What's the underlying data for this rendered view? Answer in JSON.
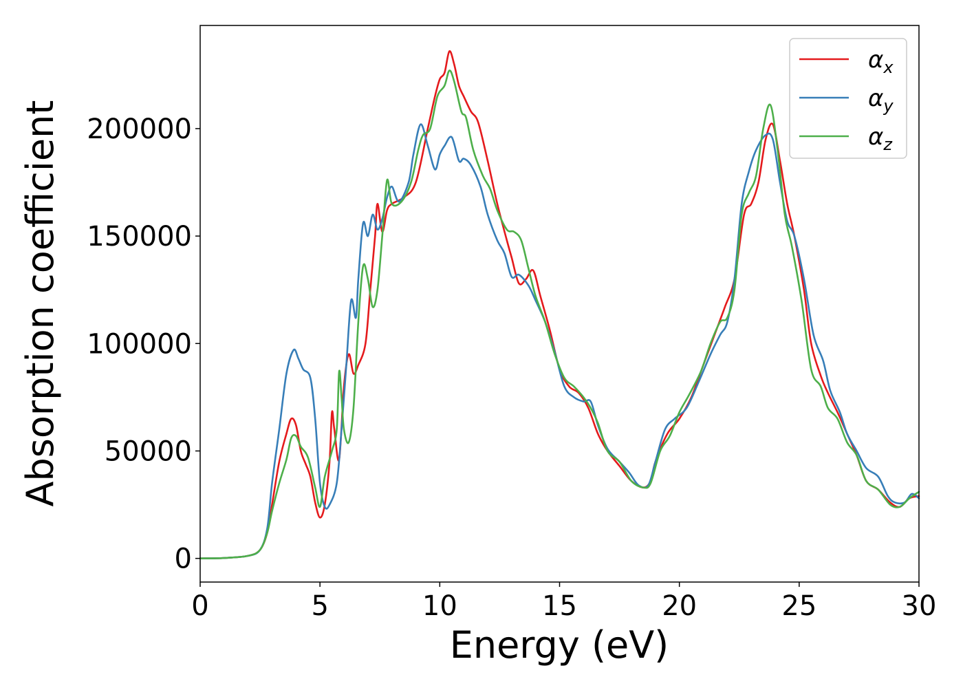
{
  "chart_data": {
    "type": "line",
    "title": "",
    "xlabel": "Energy (eV)",
    "ylabel": "Absorption coefficient",
    "xlim": [
      0,
      30
    ],
    "ylim": [
      -11000,
      248000
    ],
    "x_ticks": [
      0,
      5,
      10,
      15,
      20,
      25,
      30
    ],
    "y_ticks": [
      0,
      50000,
      100000,
      150000,
      200000
    ],
    "x_tick_labels": [
      "0",
      "5",
      "10",
      "15",
      "20",
      "25",
      "30"
    ],
    "y_tick_labels": [
      "0",
      "50000",
      "100000",
      "150000",
      "200000"
    ],
    "grid": false,
    "legend_position": "top-right",
    "series": [
      {
        "name": "α",
        "subscript": "x",
        "color": "#e41a1c",
        "points": [
          [
            0,
            0
          ],
          [
            1,
            200
          ],
          [
            2,
            1200
          ],
          [
            2.5,
            4000
          ],
          [
            2.8,
            12000
          ],
          [
            3.0,
            25000
          ],
          [
            3.3,
            45000
          ],
          [
            3.6,
            58000
          ],
          [
            3.8,
            65000
          ],
          [
            4.0,
            62000
          ],
          [
            4.2,
            50000
          ],
          [
            4.4,
            44000
          ],
          [
            4.6,
            38000
          ],
          [
            4.8,
            26000
          ],
          [
            5.0,
            19000
          ],
          [
            5.2,
            25000
          ],
          [
            5.4,
            45000
          ],
          [
            5.5,
            68000
          ],
          [
            5.6,
            60000
          ],
          [
            5.8,
            46000
          ],
          [
            6.0,
            80000
          ],
          [
            6.2,
            95000
          ],
          [
            6.4,
            86000
          ],
          [
            6.6,
            90000
          ],
          [
            6.9,
            100000
          ],
          [
            7.1,
            125000
          ],
          [
            7.3,
            150000
          ],
          [
            7.4,
            165000
          ],
          [
            7.6,
            152000
          ],
          [
            7.8,
            162000
          ],
          [
            8.0,
            165000
          ],
          [
            8.5,
            168000
          ],
          [
            9.0,
            175000
          ],
          [
            9.5,
            200000
          ],
          [
            9.8,
            215000
          ],
          [
            10.0,
            223000
          ],
          [
            10.2,
            226000
          ],
          [
            10.4,
            236000
          ],
          [
            10.6,
            230000
          ],
          [
            10.8,
            220000
          ],
          [
            11.0,
            215000
          ],
          [
            11.3,
            208000
          ],
          [
            11.6,
            203000
          ],
          [
            12.0,
            185000
          ],
          [
            12.4,
            165000
          ],
          [
            12.8,
            148000
          ],
          [
            13.0,
            140000
          ],
          [
            13.3,
            128000
          ],
          [
            13.6,
            130000
          ],
          [
            13.9,
            134000
          ],
          [
            14.2,
            122000
          ],
          [
            14.6,
            106000
          ],
          [
            15.0,
            88000
          ],
          [
            15.4,
            80000
          ],
          [
            15.8,
            77000
          ],
          [
            16.2,
            70000
          ],
          [
            16.6,
            58000
          ],
          [
            17.0,
            50000
          ],
          [
            17.5,
            43000
          ],
          [
            18.0,
            36000
          ],
          [
            18.5,
            33000
          ],
          [
            18.8,
            36000
          ],
          [
            19.0,
            45000
          ],
          [
            19.5,
            58000
          ],
          [
            20.0,
            65000
          ],
          [
            20.5,
            75000
          ],
          [
            21.0,
            90000
          ],
          [
            21.5,
            105000
          ],
          [
            21.9,
            117000
          ],
          [
            22.3,
            130000
          ],
          [
            22.7,
            160000
          ],
          [
            23.0,
            165000
          ],
          [
            23.3,
            175000
          ],
          [
            23.6,
            195000
          ],
          [
            23.9,
            202000
          ],
          [
            24.2,
            185000
          ],
          [
            24.5,
            165000
          ],
          [
            24.8,
            150000
          ],
          [
            25.2,
            125000
          ],
          [
            25.5,
            100000
          ],
          [
            25.9,
            85000
          ],
          [
            26.2,
            77000
          ],
          [
            26.6,
            68000
          ],
          [
            27.0,
            58000
          ],
          [
            27.4,
            48000
          ],
          [
            27.8,
            36000
          ],
          [
            28.3,
            32000
          ],
          [
            28.8,
            26000
          ],
          [
            29.2,
            24000
          ],
          [
            29.6,
            28000
          ],
          [
            30.0,
            29000
          ]
        ]
      },
      {
        "name": "α",
        "subscript": "y",
        "color": "#377eb8",
        "points": [
          [
            0,
            0
          ],
          [
            1,
            200
          ],
          [
            2,
            1200
          ],
          [
            2.5,
            4000
          ],
          [
            2.8,
            14000
          ],
          [
            3.0,
            35000
          ],
          [
            3.3,
            60000
          ],
          [
            3.6,
            86000
          ],
          [
            3.9,
            97000
          ],
          [
            4.1,
            93000
          ],
          [
            4.3,
            88000
          ],
          [
            4.6,
            84000
          ],
          [
            4.8,
            65000
          ],
          [
            5.0,
            35000
          ],
          [
            5.2,
            24000
          ],
          [
            5.4,
            25000
          ],
          [
            5.7,
            35000
          ],
          [
            5.9,
            60000
          ],
          [
            6.1,
            90000
          ],
          [
            6.3,
            120000
          ],
          [
            6.5,
            112000
          ],
          [
            6.6,
            130000
          ],
          [
            6.8,
            156000
          ],
          [
            7.0,
            150000
          ],
          [
            7.2,
            160000
          ],
          [
            7.4,
            153000
          ],
          [
            7.6,
            158000
          ],
          [
            7.8,
            168000
          ],
          [
            8.0,
            173000
          ],
          [
            8.3,
            166000
          ],
          [
            8.7,
            175000
          ],
          [
            8.9,
            188000
          ],
          [
            9.2,
            202000
          ],
          [
            9.5,
            192000
          ],
          [
            9.8,
            181000
          ],
          [
            10.0,
            188000
          ],
          [
            10.2,
            192000
          ],
          [
            10.5,
            196000
          ],
          [
            10.8,
            185000
          ],
          [
            11.0,
            186000
          ],
          [
            11.3,
            183000
          ],
          [
            11.7,
            173000
          ],
          [
            12.0,
            160000
          ],
          [
            12.4,
            148000
          ],
          [
            12.7,
            142000
          ],
          [
            13.0,
            131000
          ],
          [
            13.3,
            132000
          ],
          [
            13.7,
            127000
          ],
          [
            14.0,
            120000
          ],
          [
            14.4,
            110000
          ],
          [
            14.8,
            96000
          ],
          [
            15.2,
            80000
          ],
          [
            15.6,
            75000
          ],
          [
            16.0,
            73000
          ],
          [
            16.3,
            73000
          ],
          [
            16.6,
            62000
          ],
          [
            17.0,
            51000
          ],
          [
            17.5,
            45000
          ],
          [
            17.9,
            40000
          ],
          [
            18.3,
            34000
          ],
          [
            18.7,
            34000
          ],
          [
            19.0,
            45000
          ],
          [
            19.4,
            60000
          ],
          [
            19.8,
            65000
          ],
          [
            20.3,
            70000
          ],
          [
            20.8,
            82000
          ],
          [
            21.3,
            95000
          ],
          [
            21.7,
            104000
          ],
          [
            22.0,
            110000
          ],
          [
            22.3,
            130000
          ],
          [
            22.6,
            165000
          ],
          [
            22.9,
            180000
          ],
          [
            23.2,
            190000
          ],
          [
            23.6,
            197000
          ],
          [
            23.9,
            195000
          ],
          [
            24.2,
            175000
          ],
          [
            24.5,
            157000
          ],
          [
            24.8,
            150000
          ],
          [
            25.2,
            130000
          ],
          [
            25.6,
            104000
          ],
          [
            26.0,
            92000
          ],
          [
            26.3,
            78000
          ],
          [
            26.7,
            68000
          ],
          [
            27.0,
            58000
          ],
          [
            27.4,
            50000
          ],
          [
            27.8,
            42000
          ],
          [
            28.3,
            38000
          ],
          [
            28.7,
            29000
          ],
          [
            29.0,
            26000
          ],
          [
            29.4,
            26000
          ],
          [
            29.7,
            30000
          ],
          [
            30.0,
            28000
          ]
        ]
      },
      {
        "name": "α",
        "subscript": "z",
        "color": "#4daf4a",
        "points": [
          [
            0,
            0
          ],
          [
            1,
            200
          ],
          [
            2,
            1200
          ],
          [
            2.5,
            4000
          ],
          [
            2.8,
            12000
          ],
          [
            3.0,
            22000
          ],
          [
            3.3,
            35000
          ],
          [
            3.6,
            46000
          ],
          [
            3.8,
            56000
          ],
          [
            4.0,
            57000
          ],
          [
            4.2,
            52000
          ],
          [
            4.5,
            47000
          ],
          [
            4.8,
            33000
          ],
          [
            5.0,
            24000
          ],
          [
            5.2,
            38000
          ],
          [
            5.5,
            50000
          ],
          [
            5.7,
            60000
          ],
          [
            5.8,
            87000
          ],
          [
            5.9,
            75000
          ],
          [
            6.0,
            60000
          ],
          [
            6.2,
            54000
          ],
          [
            6.4,
            70000
          ],
          [
            6.6,
            110000
          ],
          [
            6.8,
            136000
          ],
          [
            7.0,
            130000
          ],
          [
            7.2,
            117000
          ],
          [
            7.4,
            125000
          ],
          [
            7.6,
            150000
          ],
          [
            7.8,
            176000
          ],
          [
            8.0,
            165000
          ],
          [
            8.4,
            166000
          ],
          [
            8.8,
            175000
          ],
          [
            9.1,
            190000
          ],
          [
            9.3,
            197000
          ],
          [
            9.6,
            200000
          ],
          [
            9.9,
            215000
          ],
          [
            10.2,
            220000
          ],
          [
            10.4,
            227000
          ],
          [
            10.6,
            222000
          ],
          [
            10.9,
            208000
          ],
          [
            11.1,
            205000
          ],
          [
            11.4,
            190000
          ],
          [
            11.8,
            178000
          ],
          [
            12.1,
            172000
          ],
          [
            12.4,
            162000
          ],
          [
            12.8,
            153000
          ],
          [
            13.1,
            152000
          ],
          [
            13.4,
            148000
          ],
          [
            13.7,
            135000
          ],
          [
            14.0,
            122000
          ],
          [
            14.4,
            110000
          ],
          [
            14.8,
            95000
          ],
          [
            15.2,
            84000
          ],
          [
            15.6,
            80000
          ],
          [
            16.0,
            75000
          ],
          [
            16.3,
            70000
          ],
          [
            16.6,
            63000
          ],
          [
            17.0,
            50000
          ],
          [
            17.5,
            45000
          ],
          [
            18.0,
            36000
          ],
          [
            18.5,
            33000
          ],
          [
            18.8,
            35000
          ],
          [
            19.2,
            50000
          ],
          [
            19.6,
            57000
          ],
          [
            20.0,
            68000
          ],
          [
            20.4,
            76000
          ],
          [
            20.9,
            87000
          ],
          [
            21.3,
            100000
          ],
          [
            21.7,
            110000
          ],
          [
            22.0,
            112000
          ],
          [
            22.3,
            125000
          ],
          [
            22.6,
            160000
          ],
          [
            22.9,
            170000
          ],
          [
            23.2,
            178000
          ],
          [
            23.5,
            200000
          ],
          [
            23.8,
            211000
          ],
          [
            24.1,
            190000
          ],
          [
            24.4,
            160000
          ],
          [
            24.7,
            145000
          ],
          [
            25.1,
            120000
          ],
          [
            25.5,
            88000
          ],
          [
            25.9,
            80000
          ],
          [
            26.2,
            70000
          ],
          [
            26.6,
            65000
          ],
          [
            27.0,
            54000
          ],
          [
            27.4,
            48000
          ],
          [
            27.8,
            36000
          ],
          [
            28.3,
            32000
          ],
          [
            28.8,
            25000
          ],
          [
            29.2,
            24000
          ],
          [
            29.6,
            28000
          ],
          [
            30.0,
            31000
          ]
        ]
      }
    ]
  }
}
